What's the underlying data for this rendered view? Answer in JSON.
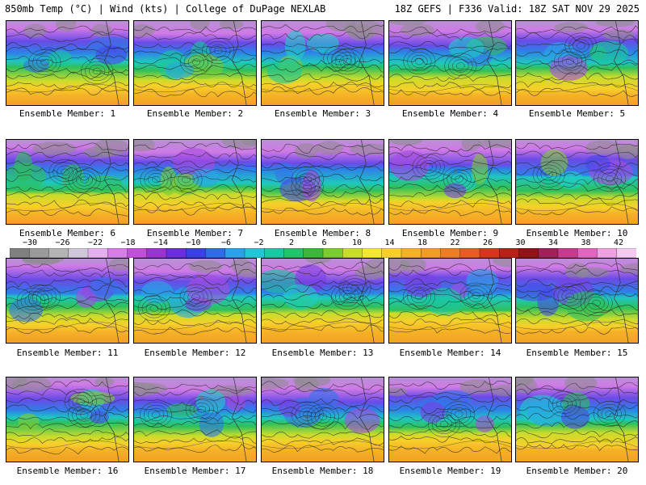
{
  "header": {
    "left_title": "850mb Temp (°C) | Wind (kts) | College of DuPage NEXLAB",
    "right_title": "18Z GEFS | F336 Valid: 18Z SAT NOV 29 2025"
  },
  "colorbar": {
    "ticks": [
      "−30",
      "−26",
      "−22",
      "−18",
      "−14",
      "−10",
      "−6",
      "−2",
      "2",
      "6",
      "10",
      "14",
      "18",
      "22",
      "26",
      "30",
      "34",
      "38",
      "42"
    ],
    "colors": [
      "#7f7f7f",
      "#9a9a9a",
      "#b4b4b4",
      "#cfc6d9",
      "#e4b0ee",
      "#d77ee8",
      "#c24fd9",
      "#9b33d1",
      "#6a2ee0",
      "#3b40e6",
      "#2d6ee8",
      "#2aa0e8",
      "#22c7d6",
      "#19c9a6",
      "#21c46b",
      "#3bb83a",
      "#7ccb2f",
      "#c8dc2a",
      "#f2e82d",
      "#f7cf2a",
      "#f5b127",
      "#f29b26",
      "#ef7d24",
      "#ea5b21",
      "#d8351d",
      "#b8201a",
      "#8f1317",
      "#a0205a",
      "#c83a8e",
      "#e266c0",
      "#eea0e0",
      "#f3c9ef"
    ]
  },
  "members": [
    {
      "label": "Ensemble Member: 1"
    },
    {
      "label": "Ensemble Member: 2"
    },
    {
      "label": "Ensemble Member: 3"
    },
    {
      "label": "Ensemble Member: 4"
    },
    {
      "label": "Ensemble Member: 5"
    },
    {
      "label": "Ensemble Member: 6"
    },
    {
      "label": "Ensemble Member: 7"
    },
    {
      "label": "Ensemble Member: 8"
    },
    {
      "label": "Ensemble Member: 9"
    },
    {
      "label": "Ensemble Member: 10"
    },
    {
      "label": "Ensemble Member: 11"
    },
    {
      "label": "Ensemble Member: 12"
    },
    {
      "label": "Ensemble Member: 13"
    },
    {
      "label": "Ensemble Member: 14"
    },
    {
      "label": "Ensemble Member: 15"
    },
    {
      "label": "Ensemble Member: 16"
    },
    {
      "label": "Ensemble Member: 17"
    },
    {
      "label": "Ensemble Member: 18"
    },
    {
      "label": "Ensemble Member: 19"
    },
    {
      "label": "Ensemble Member: 20"
    }
  ]
}
